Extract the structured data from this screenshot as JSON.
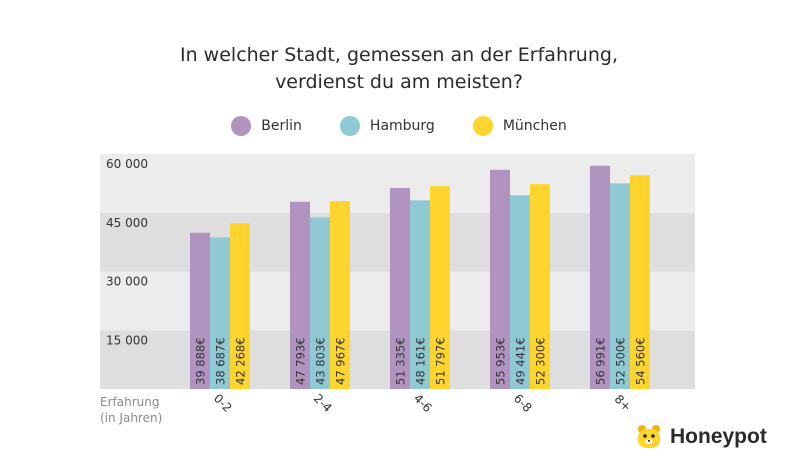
{
  "header": {
    "title_line1": "In welcher Stadt, gemessen an der Erfahrung,",
    "title_line2": "verdienst du am meisten?"
  },
  "legend": [
    {
      "label": "Berlin",
      "color": "#b193bf"
    },
    {
      "label": "Hamburg",
      "color": "#8fc9d3"
    },
    {
      "label": "München",
      "color": "#fed42f"
    }
  ],
  "xaxis_note": {
    "line1": "Erfahrung",
    "line2": "(in Jahren)"
  },
  "brand": {
    "name": "Honeypot",
    "icon": "honeypot-bear-icon"
  },
  "chart_data": {
    "type": "bar",
    "title": "In welcher Stadt, gemessen an der Erfahrung, verdienst du am meisten?",
    "xlabel": "Erfahrung (in Jahren)",
    "ylabel": "",
    "categories": [
      "0-2",
      "2-4",
      "4-6",
      "6-8",
      "8+"
    ],
    "ylim": [
      0,
      60000
    ],
    "yticks": [
      15000,
      30000,
      45000,
      60000
    ],
    "ytick_labels": [
      "15 000",
      "30 000",
      "45 000",
      "60 000"
    ],
    "legend_position": "top-center",
    "grid": "alternating horizontal bands",
    "series": [
      {
        "name": "Berlin",
        "color": "#b193bf",
        "values": [
          39888,
          47793,
          51335,
          55953,
          56991
        ],
        "labels": [
          "39 888€",
          "47 793€",
          "51 335€",
          "55 953€",
          "56 991€"
        ]
      },
      {
        "name": "Hamburg",
        "color": "#8fc9d3",
        "values": [
          38687,
          43803,
          48161,
          49441,
          52500
        ],
        "labels": [
          "38 687€",
          "43 803€",
          "48 161€",
          "49 441€",
          "52 500€"
        ]
      },
      {
        "name": "München",
        "color": "#fed42f",
        "values": [
          42268,
          47967,
          51797,
          52300,
          54560
        ],
        "labels": [
          "42 268€",
          "47 967€",
          "51 797€",
          "52 300€",
          "54 560€"
        ]
      }
    ]
  }
}
